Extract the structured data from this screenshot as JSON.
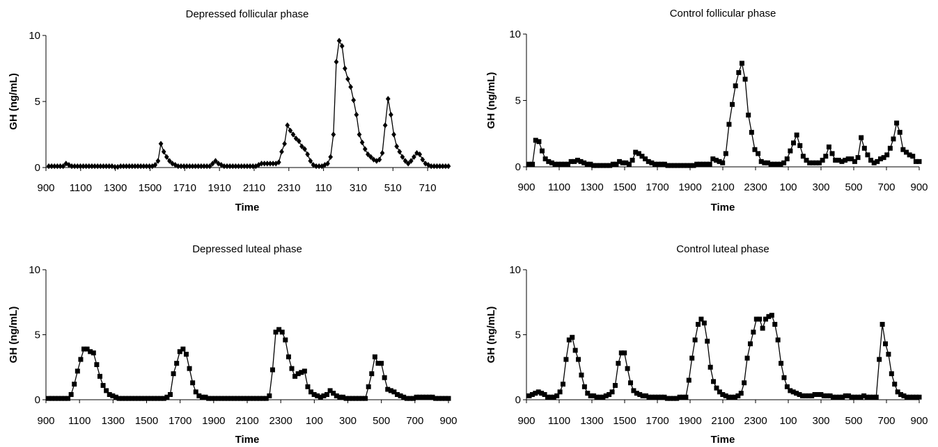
{
  "chart_data": [
    {
      "type": "line",
      "title": "Depressed follicular phase",
      "xlabel": "Time",
      "ylabel": "GH (ng/mL)",
      "ylim": [
        0,
        10
      ],
      "yticks": [
        "0",
        "5",
        "10"
      ],
      "xticks": [
        "900",
        "1100",
        "1300",
        "1500",
        "1710",
        "1910",
        "2110",
        "2310",
        "110",
        "310",
        "510",
        "710"
      ],
      "marker": "diamond",
      "grid": false,
      "series": [
        {
          "values": [
            0.1,
            0.1,
            0.1,
            0.1,
            0.1,
            0.1,
            0.3,
            0.2,
            0.1,
            0.1,
            0.1,
            0.1,
            0.1,
            0.1,
            0.1,
            0.1,
            0.1,
            0.1,
            0.1,
            0.1,
            0.1,
            0.1,
            0.1,
            0.05,
            0.05,
            0.1,
            0.1,
            0.1,
            0.1,
            0.1,
            0.1,
            0.1,
            0.1,
            0.1,
            0.1,
            0.1,
            0.1,
            0.2,
            0.5,
            1.8,
            1.2,
            0.8,
            0.5,
            0.3,
            0.2,
            0.1,
            0.1,
            0.1,
            0.1,
            0.1,
            0.1,
            0.1,
            0.1,
            0.1,
            0.1,
            0.1,
            0.1,
            0.3,
            0.5,
            0.3,
            0.2,
            0.1,
            0.1,
            0.1,
            0.1,
            0.1,
            0.1,
            0.1,
            0.1,
            0.1,
            0.1,
            0.1,
            0.1,
            0.2,
            0.3,
            0.3,
            0.3,
            0.3,
            0.3,
            0.3,
            0.4,
            1.2,
            1.8,
            3.2,
            2.8,
            2.5,
            2.2,
            2.0,
            1.6,
            1.4,
            1.0,
            0.5,
            0.2,
            0.1,
            0.1,
            0.1,
            0.2,
            0.3,
            0.8,
            2.5,
            8.0,
            9.6,
            9.2,
            7.5,
            6.7,
            6.1,
            5.1,
            4.0,
            2.5,
            1.9,
            1.4,
            1.0,
            0.8,
            0.6,
            0.5,
            0.6,
            1.1,
            3.2,
            5.2,
            4.0,
            2.5,
            1.6,
            1.2,
            0.8,
            0.5,
            0.3,
            0.5,
            0.8,
            1.1,
            1.0,
            0.6,
            0.3,
            0.2,
            0.1,
            0.1,
            0.1,
            0.1,
            0.1,
            0.1,
            0.1
          ]
        }
      ]
    },
    {
      "type": "line",
      "title": "Control follicular phase",
      "xlabel": "Time",
      "ylabel": "GH (ng/mL)",
      "ylim": [
        0,
        10
      ],
      "yticks": [
        "0",
        "5",
        "10"
      ],
      "xticks": [
        "900",
        "1100",
        "1300",
        "1500",
        "1700",
        "1900",
        "2100",
        "2300",
        "100",
        "300",
        "500",
        "700",
        "900"
      ],
      "marker": "square",
      "grid": false,
      "series": [
        {
          "values": [
            0.2,
            0.2,
            2.0,
            1.9,
            1.2,
            0.6,
            0.4,
            0.3,
            0.2,
            0.2,
            0.2,
            0.2,
            0.2,
            0.4,
            0.4,
            0.5,
            0.4,
            0.3,
            0.2,
            0.2,
            0.1,
            0.1,
            0.1,
            0.1,
            0.1,
            0.1,
            0.2,
            0.2,
            0.4,
            0.3,
            0.3,
            0.2,
            0.5,
            1.1,
            1.0,
            0.8,
            0.6,
            0.4,
            0.3,
            0.2,
            0.2,
            0.2,
            0.2,
            0.1,
            0.1,
            0.1,
            0.1,
            0.1,
            0.1,
            0.1,
            0.1,
            0.1,
            0.2,
            0.2,
            0.2,
            0.2,
            0.2,
            0.6,
            0.5,
            0.4,
            0.3,
            1.0,
            3.2,
            4.7,
            6.1,
            7.1,
            7.8,
            6.6,
            3.9,
            2.6,
            1.3,
            1.0,
            0.4,
            0.3,
            0.3,
            0.2,
            0.2,
            0.2,
            0.2,
            0.3,
            0.6,
            1.2,
            1.8,
            2.4,
            1.6,
            0.8,
            0.5,
            0.3,
            0.3,
            0.3,
            0.3,
            0.5,
            0.8,
            1.5,
            1.0,
            0.5,
            0.5,
            0.4,
            0.5,
            0.6,
            0.6,
            0.4,
            0.7,
            2.2,
            1.4,
            0.9,
            0.5,
            0.3,
            0.4,
            0.6,
            0.7,
            0.9,
            1.4,
            2.1,
            3.3,
            2.6,
            1.3,
            1.1,
            0.9,
            0.8,
            0.4,
            0.4
          ]
        }
      ]
    },
    {
      "type": "line",
      "title": "Depressed luteal phase",
      "xlabel": "Time",
      "ylabel": "GH (ng/mL)",
      "ylim": [
        0,
        10
      ],
      "yticks": [
        "0",
        "5",
        "10"
      ],
      "xticks": [
        "900",
        "1100",
        "1300",
        "1500",
        "1700",
        "1900",
        "2100",
        "2300",
        "100",
        "300",
        "500",
        "700",
        "900"
      ],
      "marker": "square",
      "grid": false,
      "series": [
        {
          "values": [
            0.1,
            0.1,
            0.1,
            0.1,
            0.1,
            0.1,
            0.1,
            0.4,
            1.2,
            2.2,
            3.1,
            3.9,
            3.9,
            3.7,
            3.6,
            2.7,
            1.8,
            1.1,
            0.7,
            0.4,
            0.3,
            0.2,
            0.1,
            0.1,
            0.1,
            0.1,
            0.1,
            0.1,
            0.1,
            0.1,
            0.1,
            0.1,
            0.1,
            0.1,
            0.1,
            0.1,
            0.1,
            0.2,
            0.4,
            2.0,
            2.8,
            3.7,
            3.9,
            3.5,
            2.4,
            1.3,
            0.6,
            0.3,
            0.2,
            0.2,
            0.1,
            0.1,
            0.1,
            0.1,
            0.1,
            0.1,
            0.1,
            0.1,
            0.1,
            0.1,
            0.1,
            0.1,
            0.1,
            0.1,
            0.1,
            0.1,
            0.1,
            0.1,
            0.1,
            0.3,
            2.3,
            5.2,
            5.4,
            5.2,
            4.6,
            3.3,
            2.4,
            1.8,
            2.0,
            2.1,
            2.2,
            1.0,
            0.6,
            0.4,
            0.3,
            0.2,
            0.3,
            0.4,
            0.7,
            0.5,
            0.3,
            0.2,
            0.2,
            0.1,
            0.1,
            0.1,
            0.1,
            0.1,
            0.1,
            0.1,
            1.0,
            2.0,
            3.3,
            2.8,
            2.8,
            1.7,
            0.8,
            0.7,
            0.6,
            0.4,
            0.3,
            0.2,
            0.1,
            0.1,
            0.1,
            0.2,
            0.2,
            0.2,
            0.2,
            0.2,
            0.2,
            0.1,
            0.1,
            0.1,
            0.1,
            0.1
          ]
        }
      ]
    },
    {
      "type": "line",
      "title": "Control luteal phase",
      "xlabel": "Time",
      "ylabel": "GH (ng/mL)",
      "ylim": [
        0,
        10
      ],
      "yticks": [
        "0",
        "5",
        "10"
      ],
      "xticks": [
        "900",
        "1100",
        "1300",
        "1500",
        "1700",
        "1900",
        "2100",
        "2300",
        "100",
        "300",
        "500",
        "700",
        "900"
      ],
      "marker": "square",
      "grid": false,
      "series": [
        {
          "values": [
            0.3,
            0.4,
            0.5,
            0.6,
            0.5,
            0.4,
            0.2,
            0.2,
            0.2,
            0.3,
            0.6,
            1.2,
            3.1,
            4.6,
            4.8,
            3.8,
            3.1,
            1.9,
            1.0,
            0.5,
            0.3,
            0.3,
            0.2,
            0.2,
            0.2,
            0.3,
            0.4,
            0.6,
            1.1,
            2.8,
            3.6,
            3.6,
            2.4,
            1.3,
            0.7,
            0.5,
            0.4,
            0.3,
            0.3,
            0.2,
            0.2,
            0.2,
            0.2,
            0.2,
            0.2,
            0.1,
            0.1,
            0.1,
            0.1,
            0.2,
            0.2,
            0.2,
            1.5,
            3.2,
            4.6,
            5.8,
            6.2,
            5.9,
            4.5,
            2.5,
            1.4,
            0.9,
            0.6,
            0.4,
            0.3,
            0.2,
            0.2,
            0.2,
            0.3,
            0.5,
            1.3,
            3.2,
            4.3,
            5.2,
            6.2,
            6.2,
            5.5,
            6.2,
            6.4,
            6.5,
            5.8,
            4.6,
            2.8,
            1.7,
            1.0,
            0.7,
            0.6,
            0.5,
            0.4,
            0.3,
            0.3,
            0.3,
            0.3,
            0.4,
            0.4,
            0.4,
            0.3,
            0.3,
            0.3,
            0.2,
            0.2,
            0.2,
            0.2,
            0.3,
            0.3,
            0.2,
            0.2,
            0.2,
            0.2,
            0.3,
            0.2,
            0.2,
            0.2,
            0.2,
            3.1,
            5.8,
            4.3,
            3.5,
            2.0,
            1.2,
            0.6,
            0.4,
            0.3,
            0.2,
            0.2,
            0.2,
            0.2,
            0.2
          ]
        }
      ]
    }
  ]
}
